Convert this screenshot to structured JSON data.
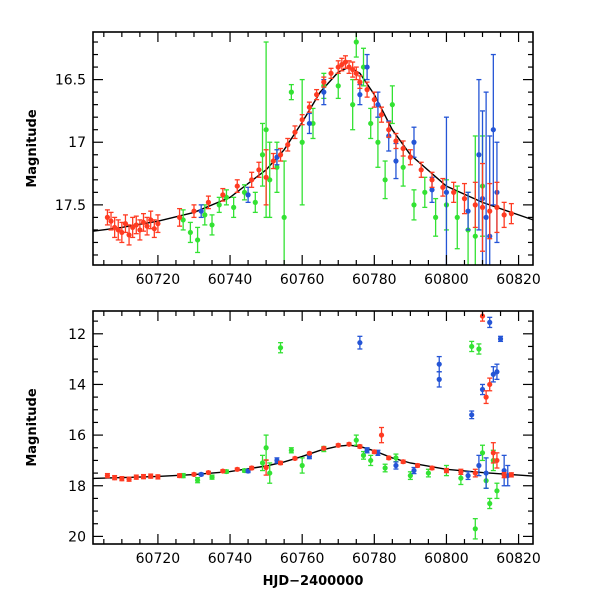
{
  "chart_data": [
    {
      "type": "scatter",
      "panel": "top",
      "xlabel": "",
      "ylabel": "Magnitude",
      "xlim": [
        60702,
        60824
      ],
      "ylim": [
        17.98,
        16.12
      ],
      "y_inverted": true,
      "x_ticks": [
        60720,
        60740,
        60760,
        60780,
        60800,
        60820
      ],
      "x_tick_labels": [
        "60720",
        "60740",
        "60760",
        "60780",
        "60800",
        "60820"
      ],
      "y_ticks": [
        16.5,
        17,
        17.5
      ],
      "y_tick_labels": [
        "16.5",
        "17",
        "17.5"
      ],
      "grid": false,
      "model_curve": {
        "color": "#000000",
        "x": [
          60702,
          60710,
          60720,
          60730,
          60740,
          60750,
          60755,
          60760,
          60765,
          60770,
          60773,
          60776,
          60780,
          60785,
          60790,
          60800,
          60810,
          60820,
          60824
        ],
        "y": [
          17.71,
          17.68,
          17.63,
          17.56,
          17.44,
          17.22,
          17.06,
          16.84,
          16.6,
          16.44,
          16.4,
          16.45,
          16.62,
          16.9,
          17.1,
          17.35,
          17.48,
          17.58,
          17.62
        ]
      },
      "series": [
        {
          "color": "#ff3b22",
          "x": [
            60706,
            60707,
            60708,
            60709,
            60710,
            60711,
            60712,
            60713,
            60714,
            60715,
            60716,
            60717,
            60718,
            60719,
            60720,
            60726,
            60730,
            60734,
            60738,
            60742,
            60746,
            60748,
            60750,
            60752,
            60754,
            60756,
            60758,
            60760,
            60762,
            60764,
            60766,
            60768,
            60770,
            60771,
            60772,
            60773,
            60774,
            60775,
            60776,
            60778,
            60780,
            60782,
            60784,
            60786,
            60788,
            60790,
            60793,
            60796,
            60799,
            60802,
            60805,
            60808,
            60810,
            60812,
            60814,
            60816,
            60818
          ],
          "y": [
            17.6,
            17.63,
            17.68,
            17.7,
            17.72,
            17.65,
            17.74,
            17.68,
            17.66,
            17.7,
            17.64,
            17.67,
            17.62,
            17.69,
            17.65,
            17.6,
            17.55,
            17.48,
            17.42,
            17.35,
            17.3,
            17.22,
            17.28,
            17.15,
            17.1,
            17.02,
            16.92,
            16.82,
            16.72,
            16.62,
            16.52,
            16.45,
            16.4,
            16.38,
            16.36,
            16.4,
            16.42,
            16.45,
            16.52,
            16.58,
            16.66,
            16.78,
            16.9,
            16.99,
            17.05,
            17.12,
            17.22,
            17.3,
            17.36,
            17.4,
            17.45,
            17.5,
            17.52,
            17.55,
            17.52,
            17.58,
            17.57
          ],
          "err": [
            0.06,
            0.07,
            0.08,
            0.08,
            0.08,
            0.07,
            0.08,
            0.08,
            0.07,
            0.08,
            0.07,
            0.07,
            0.07,
            0.07,
            0.07,
            0.07,
            0.05,
            0.05,
            0.05,
            0.05,
            0.06,
            0.06,
            0.22,
            0.06,
            0.05,
            0.05,
            0.05,
            0.04,
            0.04,
            0.04,
            0.04,
            0.04,
            0.05,
            0.05,
            0.05,
            0.05,
            0.06,
            0.05,
            0.05,
            0.06,
            0.06,
            0.06,
            0.06,
            0.06,
            0.06,
            0.06,
            0.06,
            0.06,
            0.07,
            0.08,
            0.12,
            0.18,
            0.35,
            0.22,
            0.2,
            0.1,
            0.08
          ]
        },
        {
          "color": "#2555d6",
          "x": [
            60732,
            60745,
            60753,
            60762,
            60766,
            60776,
            60778,
            60781,
            60784,
            60786,
            60791,
            60796,
            60800,
            60806,
            60809,
            60810,
            60811,
            60812,
            60813,
            60814
          ],
          "y": [
            17.55,
            17.42,
            17.12,
            16.85,
            16.6,
            16.62,
            16.4,
            16.7,
            16.95,
            17.15,
            17.0,
            17.38,
            17.4,
            17.55,
            17.1,
            17.45,
            17.6,
            17.75,
            16.9,
            17.4
          ],
          "err": [
            0.05,
            0.06,
            0.06,
            0.08,
            0.1,
            0.08,
            0.1,
            0.1,
            0.12,
            0.14,
            0.12,
            0.1,
            0.6,
            0.15,
            0.6,
            0.7,
            1.0,
            0.8,
            0.6,
            0.4
          ]
        },
        {
          "color": "#33e233",
          "x": [
            60727,
            60729,
            60731,
            60733,
            60735,
            60737,
            60739,
            60741,
            60744,
            60747,
            60749,
            60750,
            60751,
            60753,
            60755,
            60757,
            60760,
            60763,
            60766,
            60770,
            60774,
            60775,
            60777,
            60779,
            60781,
            60783,
            60785,
            60788,
            60791,
            60794,
            60797,
            60800,
            60803,
            60806,
            60808,
            60810
          ],
          "y": [
            17.62,
            17.72,
            17.78,
            17.58,
            17.66,
            17.5,
            17.44,
            17.52,
            17.4,
            17.48,
            17.1,
            16.9,
            17.3,
            17.2,
            17.6,
            16.6,
            17.0,
            16.85,
            16.55,
            16.55,
            16.7,
            16.2,
            16.4,
            16.85,
            17.0,
            17.3,
            16.7,
            17.2,
            17.5,
            17.4,
            17.6,
            17.5,
            17.6,
            17.7,
            17.75,
            17.35
          ],
          "err": [
            0.08,
            0.08,
            0.1,
            0.08,
            0.08,
            0.06,
            0.06,
            0.08,
            0.06,
            0.08,
            0.25,
            0.7,
            0.3,
            0.2,
            0.45,
            0.06,
            0.5,
            0.12,
            0.1,
            0.1,
            0.2,
            0.12,
            0.15,
            0.12,
            0.2,
            0.15,
            0.15,
            0.15,
            0.12,
            0.12,
            0.15,
            0.2,
            0.25,
            0.3,
            0.8,
            0.4
          ]
        }
      ]
    },
    {
      "type": "scatter",
      "panel": "bottom",
      "xlabel": "HJD−2400000",
      "ylabel": "Magnitude",
      "xlim": [
        60702,
        60824
      ],
      "ylim": [
        20.3,
        11.1
      ],
      "y_inverted": true,
      "x_ticks": [
        60720,
        60740,
        60760,
        60780,
        60800,
        60820
      ],
      "x_tick_labels": [
        "60720",
        "60740",
        "60760",
        "60780",
        "60800",
        "60820"
      ],
      "y_ticks": [
        12,
        14,
        16,
        18,
        20
      ],
      "y_tick_labels": [
        "12",
        "14",
        "16",
        "18",
        "20"
      ],
      "grid": false,
      "model_curve": {
        "color": "#000000",
        "x": [
          60702,
          60710,
          60720,
          60730,
          60740,
          60750,
          60755,
          60760,
          60765,
          60770,
          60773,
          60776,
          60780,
          60785,
          60790,
          60800,
          60810,
          60820,
          60824
        ],
        "y": [
          17.71,
          17.68,
          17.63,
          17.56,
          17.44,
          17.22,
          17.06,
          16.84,
          16.6,
          16.44,
          16.4,
          16.45,
          16.62,
          16.9,
          17.1,
          17.35,
          17.48,
          17.58,
          17.62
        ]
      },
      "series": [
        {
          "color": "#ff3b22",
          "x": [
            60706,
            60708,
            60710,
            60712,
            60714,
            60716,
            60718,
            60720,
            60726,
            60730,
            60734,
            60738,
            60742,
            60746,
            60750,
            60754,
            60758,
            60762,
            60766,
            60770,
            60773,
            60776,
            60780,
            60782,
            60784,
            60788,
            60792,
            60796,
            60800,
            60804,
            60808,
            60810,
            60811,
            60812,
            60813,
            60814,
            60816,
            60818
          ],
          "y": [
            17.6,
            17.68,
            17.72,
            17.74,
            17.66,
            17.64,
            17.62,
            17.65,
            17.6,
            17.55,
            17.48,
            17.42,
            17.35,
            17.3,
            17.28,
            17.1,
            16.92,
            16.72,
            16.52,
            16.4,
            16.36,
            16.45,
            16.66,
            16.0,
            16.9,
            17.05,
            17.2,
            17.3,
            17.4,
            17.45,
            17.5,
            11.3,
            14.5,
            14.0,
            16.7,
            17.0,
            17.58,
            17.57
          ],
          "err": [
            0.08,
            0.08,
            0.08,
            0.08,
            0.08,
            0.08,
            0.08,
            0.08,
            0.07,
            0.05,
            0.05,
            0.05,
            0.05,
            0.06,
            0.3,
            0.06,
            0.05,
            0.04,
            0.04,
            0.05,
            0.05,
            0.06,
            0.06,
            0.3,
            0.06,
            0.06,
            0.06,
            0.06,
            0.08,
            0.1,
            0.15,
            0.2,
            0.25,
            0.25,
            0.4,
            0.3,
            0.1,
            0.08
          ]
        },
        {
          "color": "#2555d6",
          "x": [
            60732,
            60745,
            60753,
            60762,
            60776,
            60778,
            60781,
            60786,
            60791,
            60798,
            60798,
            60806,
            60807,
            60809,
            60810,
            60811,
            60812,
            60813,
            60814,
            60815,
            60816,
            60817
          ],
          "y": [
            17.55,
            17.42,
            17.0,
            16.85,
            12.35,
            16.6,
            16.7,
            17.2,
            17.4,
            13.2,
            13.8,
            17.6,
            15.2,
            17.2,
            14.2,
            17.5,
            11.55,
            13.6,
            13.5,
            12.2,
            17.4,
            17.6
          ],
          "err": [
            0.05,
            0.06,
            0.1,
            0.08,
            0.25,
            0.1,
            0.1,
            0.14,
            0.12,
            0.3,
            0.3,
            0.15,
            0.15,
            0.4,
            0.2,
            0.6,
            0.2,
            0.3,
            0.3,
            0.1,
            0.6,
            0.4
          ]
        },
        {
          "color": "#33e233",
          "x": [
            60727,
            60731,
            60735,
            60739,
            60744,
            60749,
            60750,
            60751,
            60754,
            60757,
            60760,
            60766,
            60775,
            60777,
            60779,
            60783,
            60786,
            60790,
            60795,
            60800,
            60804,
            60807,
            60808,
            60809,
            60810,
            60811,
            60812,
            60813,
            60814
          ],
          "y": [
            17.6,
            17.78,
            17.66,
            17.44,
            17.4,
            17.1,
            16.5,
            17.5,
            12.55,
            16.6,
            17.2,
            16.55,
            16.2,
            16.8,
            17.0,
            17.3,
            16.9,
            17.6,
            17.5,
            17.4,
            17.7,
            12.5,
            19.7,
            12.6,
            16.7,
            17.8,
            18.7,
            17.0,
            18.2
          ],
          "err": [
            0.08,
            0.1,
            0.08,
            0.06,
            0.06,
            0.3,
            0.5,
            0.4,
            0.2,
            0.1,
            0.3,
            0.1,
            0.2,
            0.15,
            0.2,
            0.15,
            0.15,
            0.15,
            0.15,
            0.2,
            0.25,
            0.2,
            0.4,
            0.2,
            0.3,
            0.3,
            0.2,
            0.4,
            0.3
          ]
        }
      ]
    }
  ]
}
